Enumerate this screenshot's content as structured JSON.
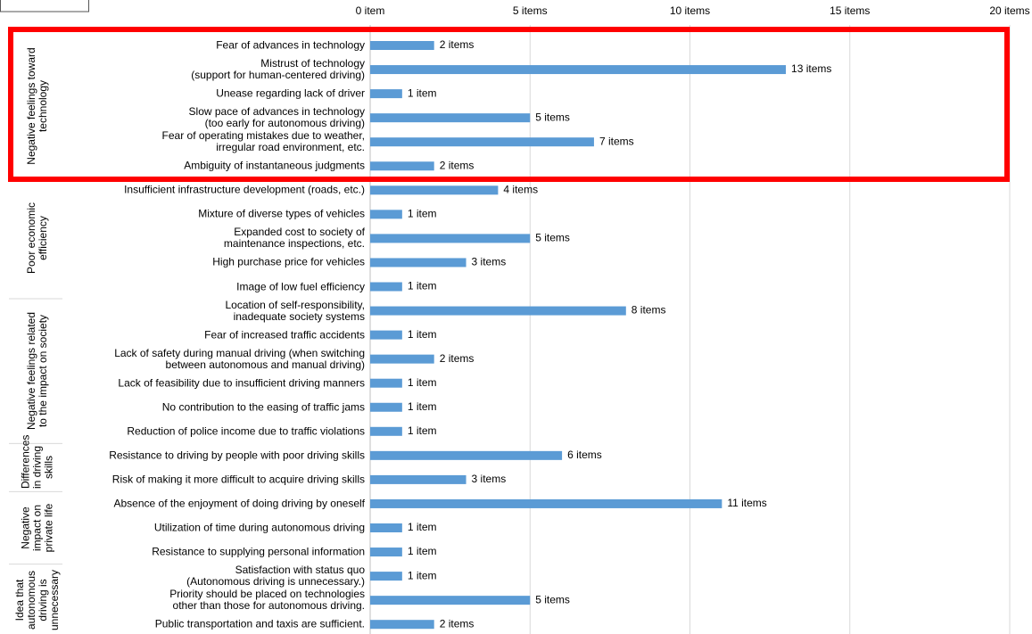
{
  "chart_data": {
    "type": "bar",
    "color": "#5b9bd5",
    "grid": true,
    "xlim": [
      0,
      20
    ],
    "xticks": [
      {
        "value": 0,
        "label": "0 item"
      },
      {
        "value": 5,
        "label": "5 items"
      },
      {
        "value": 10,
        "label": "10 items"
      },
      {
        "value": 15,
        "label": "15 items"
      },
      {
        "value": 20,
        "label": "20 items"
      }
    ],
    "groups": [
      {
        "name": "Negative feelings toward\ntechnology",
        "categories": [
          "Fear of advances in technology",
          "Mistrust of technology\n(support for human-centered driving)",
          "Unease regarding lack of driver",
          "Slow pace of advances in technology\n(too early for autonomous driving)",
          "Fear of operating mistakes due to weather,\nirregular road environment, etc.",
          "Ambiguity of instantaneous judgments"
        ],
        "values": [
          2,
          13,
          1,
          5,
          7,
          2
        ],
        "value_labels": [
          "2 items",
          "13 items",
          "1 item",
          "5 items",
          "7 items",
          "2 items"
        ]
      },
      {
        "name": "Poor economic\nefficiency",
        "categories": [
          "Insufficient infrastructure development (roads, etc.)",
          "Mixture of diverse types of vehicles",
          "Expanded cost to society of\nmaintenance inspections, etc.",
          "High purchase price for vehicles",
          "Image of low fuel efficiency"
        ],
        "values": [
          4,
          1,
          5,
          3,
          1
        ],
        "value_labels": [
          "4 items",
          "1 item",
          "5 items",
          "3 items",
          "1 item"
        ]
      },
      {
        "name": "Negative feelings related\nto the impact on society",
        "categories": [
          "Location of self-responsibility,\ninadequate society systems",
          "Fear of increased traffic accidents",
          "Lack of safety during manual driving (when switching\nbetween autonomous and manual driving)",
          "Lack of feasibility due to insufficient driving manners",
          "No contribution to the easing of traffic jams",
          "Reduction of police income due to traffic violations"
        ],
        "values": [
          8,
          1,
          2,
          1,
          1,
          1
        ],
        "value_labels": [
          "8 items",
          "1 item",
          "2 items",
          "1 item",
          "1 item",
          "1 item"
        ]
      },
      {
        "name": "Differences\nin driving\nskills",
        "categories": [
          "Resistance to driving by people with poor driving skills",
          "Risk of making it more difficult to acquire driving skills"
        ],
        "values": [
          6,
          3
        ],
        "value_labels": [
          "6 items",
          "3 items"
        ]
      },
      {
        "name": "Negative\nimpact on\nprivate life",
        "categories": [
          "Absence of the enjoyment of doing driving by oneself",
          "Utilization of time during autonomous driving",
          "Resistance to supplying personal information"
        ],
        "values": [
          11,
          1,
          1
        ],
        "value_labels": [
          "11 items",
          "1 item",
          "1 item"
        ]
      },
      {
        "name": "Idea that\nautonomous\ndriving is\nunnecessary",
        "categories": [
          "Satisfaction with status quo\n(Autonomous driving is unnecessary.)",
          "Priority should be placed on technologies\nother than those for autonomous driving.",
          "Public transportation and taxis are sufficient."
        ],
        "values": [
          1,
          5,
          2
        ],
        "value_labels": [
          "1 item",
          "5 items",
          "2 items"
        ]
      }
    ]
  }
}
